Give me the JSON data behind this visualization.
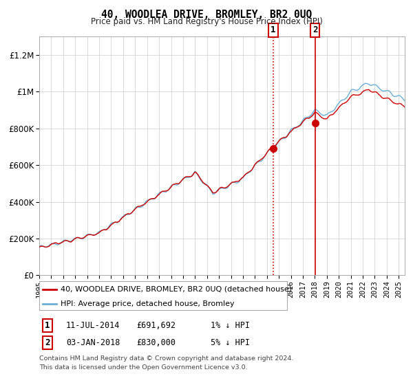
{
  "title": "40, WOODLEA DRIVE, BROMLEY, BR2 0UQ",
  "subtitle": "Price paid vs. HM Land Registry's House Price Index (HPI)",
  "ylim": [
    0,
    1300000
  ],
  "yticks": [
    0,
    200000,
    400000,
    600000,
    800000,
    1000000,
    1200000
  ],
  "ytick_labels": [
    "£0",
    "£200K",
    "£400K",
    "£600K",
    "£800K",
    "£1M",
    "£1.2M"
  ],
  "hpi_color": "#6baed6",
  "price_color": "#cc0000",
  "fill_color": "#cce0f0",
  "sale1_year": 2014.53,
  "sale1_price": 691692,
  "sale1_label": "1",
  "sale1_date_str": "11-JUL-2014",
  "sale1_price_str": "£691,692",
  "sale1_pct": "1% ↓ HPI",
  "sale2_year": 2018.01,
  "sale2_price": 830000,
  "sale2_label": "2",
  "sale2_date_str": "03-JAN-2018",
  "sale2_price_str": "£830,000",
  "sale2_pct": "5% ↓ HPI",
  "legend_line1": "40, WOODLEA DRIVE, BROMLEY, BR2 0UQ (detached house)",
  "legend_line2": "HPI: Average price, detached house, Bromley",
  "footnote1": "Contains HM Land Registry data © Crown copyright and database right 2024.",
  "footnote2": "This data is licensed under the Open Government Licence v3.0.",
  "background_color": "#ffffff",
  "grid_color": "#cccccc"
}
